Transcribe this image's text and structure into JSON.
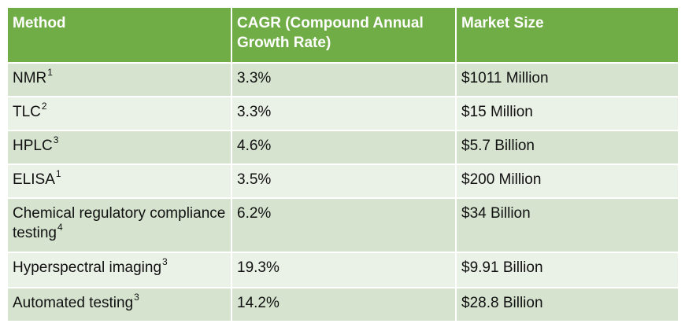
{
  "table": {
    "headers": [
      "Method",
      "CAGR (Compound Annual Growth Rate)",
      "Market Size"
    ],
    "rows": [
      {
        "method": "NMR",
        "sup": "1",
        "cagr": "3.3%",
        "market_size": "$1011 Million"
      },
      {
        "method": "TLC",
        "sup": "2",
        "cagr": "3.3%",
        "market_size": "$15 Million"
      },
      {
        "method": "HPLC",
        "sup": "3",
        "cagr": "4.6%",
        "market_size": "$5.7 Billion"
      },
      {
        "method": "ELISA",
        "sup": "1",
        "cagr": "3.5%",
        "market_size": "$200 Million"
      },
      {
        "method": "Chemical regulatory compliance testing",
        "sup": "4",
        "cagr": "6.2%",
        "market_size": "$34 Billion"
      },
      {
        "method": "Hyperspectral imaging",
        "sup": "3",
        "cagr": "19.3%",
        "market_size": "$9.91 Billion"
      },
      {
        "method": "Automated testing",
        "sup": "3",
        "cagr": "14.2%",
        "market_size": "$28.8 Billion"
      }
    ]
  }
}
